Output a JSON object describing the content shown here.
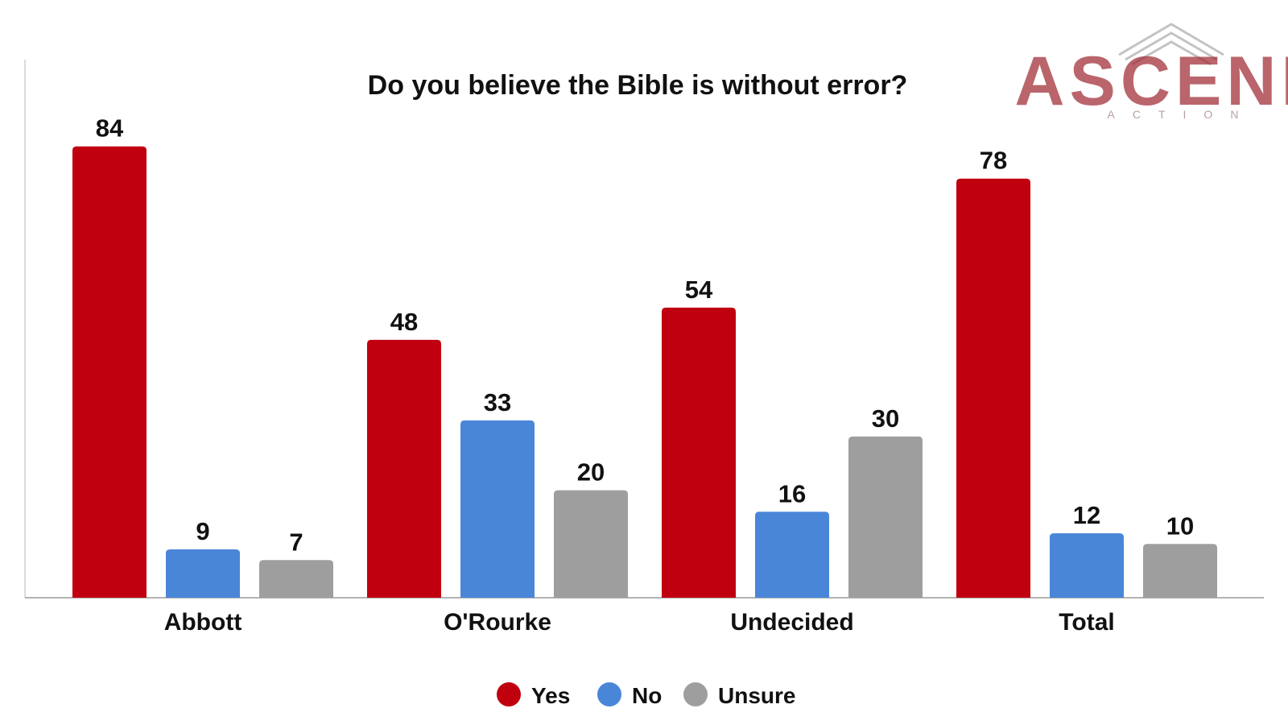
{
  "logo": {
    "main": "ASCEND",
    "sub": "ACTION"
  },
  "chart_data": {
    "type": "bar",
    "title": "Do you believe the Bible is without error?",
    "xlabel": "",
    "ylabel": "",
    "ylim": [
      0,
      100
    ],
    "grid": false,
    "legend_position": "bottom-center",
    "categories": [
      "Abbott",
      "O'Rourke",
      "Undecided",
      "Total"
    ],
    "series": [
      {
        "name": "Yes",
        "color": "#c0000f",
        "values": [
          84,
          48,
          54,
          78
        ]
      },
      {
        "name": "No",
        "color": "#4a86d8",
        "values": [
          9,
          33,
          16,
          12
        ]
      },
      {
        "name": "Unsure",
        "color": "#9e9e9e",
        "values": [
          7,
          20,
          30,
          10
        ]
      }
    ]
  }
}
